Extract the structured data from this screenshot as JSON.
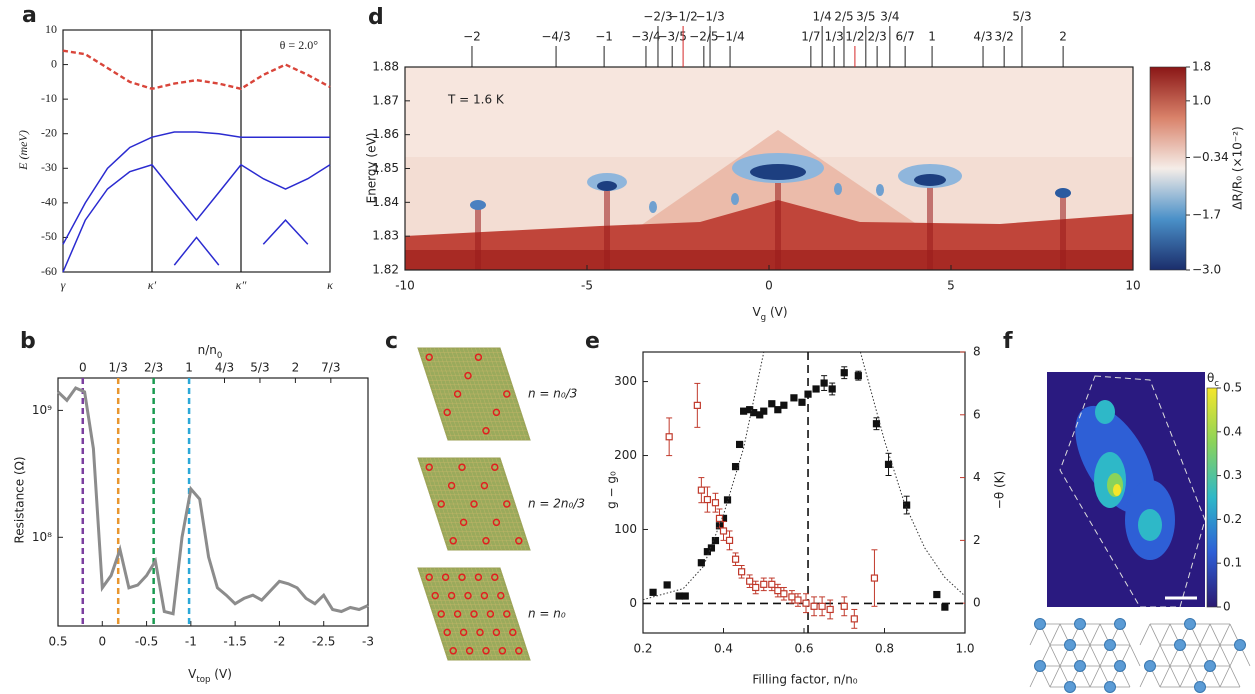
{
  "chart_data": [
    {
      "panel": "a",
      "type": "line",
      "y_label": "E (meV)",
      "annotation": "θ = 2.0°",
      "x": [
        0,
        0.25,
        0.5,
        0.75,
        1,
        1.25,
        1.5,
        1.75,
        2,
        2.25,
        2.5,
        2.75,
        3
      ],
      "series": [
        {
          "color": "#d9453a",
          "dashed": true,
          "values": [
            4,
            3,
            -1,
            -5,
            -7,
            -5.5,
            -4.5,
            -5.5,
            -7,
            -3,
            0,
            -3,
            -6.5
          ]
        },
        {
          "color": "#2b2bd0",
          "values": [
            -52,
            -40,
            -30,
            -24,
            -21,
            -19.5,
            -19.5,
            -20,
            -21,
            -21,
            -21,
            -21,
            -21
          ]
        },
        {
          "color": "#2b2bd0",
          "values": [
            -60,
            -45,
            -36,
            -31,
            -29,
            -37,
            -45,
            -37,
            -29,
            -33,
            -36,
            -33,
            -29
          ]
        },
        {
          "color": "#2b2bd0",
          "values": [
            null,
            null,
            null,
            null,
            null,
            -58,
            -50,
            -58,
            null,
            -52,
            -45,
            -52,
            null
          ]
        }
      ],
      "xlim": [
        0,
        3
      ],
      "xticks": [
        {
          "value": 0,
          "label": "γ"
        },
        {
          "value": 1,
          "label": "κ′"
        },
        {
          "value": 2,
          "label": "κ″"
        },
        {
          "value": 3,
          "label": "κ"
        }
      ],
      "xgrid": true,
      "ylim": [
        -60,
        10
      ],
      "yticks": [
        -60,
        -50,
        -40,
        -30,
        -20,
        -10,
        0,
        10
      ]
    },
    {
      "panel": "b",
      "type": "line",
      "y_label": "Resistance (Ω)",
      "x_label": {
        "text": "V",
        "sub": "top",
        "unit": " (V)"
      },
      "x2_label": {
        "text": "n/n",
        "sub": "0"
      },
      "x": [
        0.5,
        0.4,
        0.3,
        0.2,
        0.1,
        0,
        -0.1,
        -0.2,
        -0.3,
        -0.4,
        -0.5,
        -0.6,
        -0.7,
        -0.8,
        -0.9,
        -1.0,
        -1.1,
        -1.2,
        -1.3,
        -1.4,
        -1.5,
        -1.6,
        -1.7,
        -1.8,
        -1.9,
        -2.0,
        -2.1,
        -2.2,
        -2.3,
        -2.4,
        -2.5,
        -2.6,
        -2.7,
        -2.8,
        -2.9,
        -3.0
      ],
      "series": [
        {
          "color": "#8c8c8c",
          "values": [
            1400000000.0,
            1200000000.0,
            1500000000.0,
            1400000000.0,
            500000000.0,
            40000000.0,
            50000000.0,
            80000000.0,
            40000000.0,
            42000000.0,
            50000000.0,
            65000000.0,
            26000000.0,
            25000000.0,
            100000000.0,
            240000000.0,
            200000000.0,
            70000000.0,
            40000000.0,
            35000000.0,
            30000000.0,
            33000000.0,
            35000000.0,
            32000000.0,
            38000000.0,
            45000000.0,
            43000000.0,
            40000000.0,
            33000000.0,
            30000000.0,
            35000000.0,
            27000000.0,
            26000000.0,
            28000000.0,
            27000000.0,
            29000000.0
          ]
        }
      ],
      "xlim": [
        0.5,
        -3
      ],
      "xticks": [
        0.5,
        0,
        -0.5,
        -1,
        -1.5,
        -2,
        -2.5,
        -3
      ],
      "ylim": [
        20000000.0,
        1800000000.0
      ],
      "ylog": true,
      "yticks": [
        {
          "value": 100000000,
          "label": "10⁸"
        },
        {
          "value": 1000000000,
          "label": "10⁹"
        }
      ],
      "x2lim": [
        -0.233,
        2.683
      ],
      "x2ticks": [
        0,
        {
          "value": 0.3333,
          "label": "1/3"
        },
        {
          "value": 0.6667,
          "label": "2/3"
        },
        1,
        {
          "value": 1.3333,
          "label": "4/3"
        },
        {
          "value": 1.6667,
          "label": "5/3"
        },
        2,
        {
          "value": 2.3333,
          "label": "7/3"
        }
      ],
      "vlines": [
        {
          "value": 0,
          "color": "#7b3fa0"
        },
        {
          "value": 0.3333,
          "color": "#e8962e"
        },
        {
          "value": 0.6667,
          "color": "#1a9a50"
        },
        {
          "value": 1,
          "color": "#2ba8d8"
        }
      ]
    },
    {
      "panel": "d",
      "type": "heatmap",
      "y_label": "Energy (eV)",
      "x_label": {
        "text": "V",
        "sub": "g",
        "unit": " (V)"
      },
      "annotation": "T = 1.6 K",
      "xlim": [
        -10,
        10
      ],
      "xticks": [
        -10,
        -5,
        0,
        5,
        10
      ],
      "ylim": [
        1.82,
        1.88
      ],
      "yticks": [
        1.82,
        1.83,
        1.84,
        1.85,
        1.86,
        1.87,
        1.88
      ],
      "x2ticks": [
        {
          "value": -8.16,
          "label": "−2"
        },
        {
          "value": -5.85,
          "label": "−4/3"
        },
        {
          "value": -4.53,
          "label": "−1"
        },
        {
          "value": -3.38,
          "label": "−3/4"
        },
        {
          "value": -3.05,
          "label": "−2/3"
        },
        {
          "value": -2.66,
          "label": "−3/5"
        },
        {
          "value": -2.36,
          "label": "−1/2",
          "color": "#d62728"
        },
        {
          "value": -1.79,
          "label": "−2/5"
        },
        {
          "value": -1.62,
          "label": "−1/3"
        },
        {
          "value": -1.07,
          "label": "−1/4"
        },
        {
          "value": 1.15,
          "label": "1/7"
        },
        {
          "value": 1.46,
          "label": "1/4"
        },
        {
          "value": 1.79,
          "label": "1/3"
        },
        {
          "value": 2.06,
          "label": "2/5"
        },
        {
          "value": 2.36,
          "label": "1/2",
          "color": "#d62728"
        },
        {
          "value": 2.66,
          "label": "3/5"
        },
        {
          "value": 2.97,
          "label": "2/3"
        },
        {
          "value": 3.32,
          "label": "3/4"
        },
        {
          "value": 3.74,
          "label": "6/7"
        },
        {
          "value": 4.48,
          "label": "1"
        },
        {
          "value": 5.88,
          "label": "4/3"
        },
        {
          "value": 6.46,
          "label": "3/2"
        },
        {
          "value": 6.95,
          "label": "5/3"
        },
        {
          "value": 8.08,
          "label": "2"
        }
      ],
      "clim": [
        -3,
        1.8
      ],
      "colorbar_ticks": [
        1.8,
        {
          "value": 1,
          "label": "1.0"
        },
        {
          "value": -0.34,
          "label": "−0.34"
        },
        {
          "value": -1.7,
          "label": "−1.7"
        },
        {
          "value": -3,
          "label": "−3.0"
        }
      ],
      "colorbar_label": "ΔR/R₀ (×10⁻²)",
      "colormap": [
        "#1b2d6b",
        "#4a90c8",
        "#f5ede8",
        "#d9826a",
        "#8a1616"
      ]
    },
    {
      "panel": "e",
      "type": "scatter",
      "x_label": "Filling factor, n/n₀",
      "y_label": "g − g₀",
      "y2_label": "−θ (K)",
      "y2_color": "#c0392b",
      "xlim": [
        0.2,
        1
      ],
      "xticks": [
        0.2,
        0.4,
        0.6,
        0.8,
        {
          "value": 1,
          "label": "1.0"
        }
      ],
      "ylim": [
        -40,
        340
      ],
      "yticks": [
        0,
        100,
        200,
        300
      ],
      "y2lim": [
        -0.95,
        8
      ],
      "y2ticks": [
        0,
        2,
        4,
        6,
        8
      ],
      "hline": 0,
      "vline": 0.61,
      "series": [
        {
          "color": "#111111",
          "marker": "filled",
          "x": [
            0.225,
            0.26,
            0.29,
            0.305,
            0.345,
            0.36,
            0.37,
            0.38,
            0.39,
            0.4,
            0.41,
            0.43,
            0.44,
            0.45,
            0.465,
            0.475,
            0.49,
            0.5,
            0.52,
            0.535,
            0.55,
            0.575,
            0.595,
            0.61,
            0.63,
            0.65,
            0.67,
            0.7,
            0.735,
            0.78,
            0.81,
            0.855,
            0.93,
            0.95
          ],
          "values": [
            15,
            25,
            10,
            10,
            55,
            70,
            75,
            85,
            105,
            115,
            140,
            185,
            215,
            260,
            262,
            258,
            255,
            260,
            270,
            262,
            268,
            278,
            272,
            283,
            290,
            298,
            290,
            312,
            308,
            243,
            188,
            133,
            12,
            -5
          ],
          "errors": [
            null,
            null,
            null,
            null,
            null,
            null,
            null,
            null,
            null,
            null,
            null,
            null,
            null,
            null,
            null,
            null,
            null,
            null,
            null,
            null,
            null,
            null,
            null,
            null,
            null,
            10,
            8,
            8,
            6,
            8,
            15,
            12,
            null,
            null
          ]
        },
        {
          "color": "#c0392b",
          "marker": "open",
          "axis": "y2",
          "x": [
            0.265,
            0.335,
            0.345,
            0.36,
            0.38,
            0.39,
            0.4,
            0.415,
            0.43,
            0.445,
            0.465,
            0.48,
            0.5,
            0.52,
            0.535,
            0.55,
            0.57,
            0.585,
            0.605,
            0.625,
            0.645,
            0.665,
            0.7,
            0.725,
            0.775
          ],
          "values": [
            5.3,
            6.3,
            3.6,
            3.3,
            3.2,
            2.7,
            2.3,
            2.0,
            1.4,
            1.0,
            0.7,
            0.5,
            0.6,
            0.6,
            0.4,
            0.3,
            0.2,
            0.1,
            0.0,
            -0.1,
            -0.1,
            -0.2,
            -0.1,
            -0.5,
            0.8
          ],
          "errors": [
            0.6,
            0.7,
            0.4,
            0.4,
            0.3,
            0.3,
            0.3,
            0.3,
            0.2,
            0.2,
            0.2,
            0.2,
            0.2,
            0.2,
            0.2,
            0.2,
            0.2,
            0.2,
            0.3,
            0.3,
            0.3,
            0.3,
            0.3,
            0.3,
            0.9
          ]
        },
        {
          "color": "#333333",
          "marker": "dotted-line",
          "x": [
            0.2,
            0.3,
            0.35,
            0.4,
            0.45,
            0.5
          ],
          "values": [
            5,
            20,
            50,
            120,
            210,
            340
          ]
        },
        {
          "color": "#333333",
          "marker": "dotted-line",
          "x": [
            0.74,
            0.8,
            0.85,
            0.9,
            0.95,
            1.0
          ],
          "values": [
            340,
            220,
            135,
            75,
            35,
            10
          ]
        }
      ]
    },
    {
      "panel": "f",
      "type": "heatmap",
      "colorbar_label": {
        "text": "θ",
        "sub": "c"
      },
      "clim": [
        0,
        0.5
      ],
      "colorbar_ticks": [
        0,
        0.1,
        0.2,
        0.3,
        0.4,
        0.5
      ],
      "colormap": [
        "#2b1a72",
        "#2e5fd6",
        "#2eb8c8",
        "#8ad35a",
        "#f5e62a"
      ]
    }
  ],
  "diagram": {
    "panel": "c",
    "labels": [
      "n = n₀/3",
      "n = 2n₀/3",
      "n = n₀"
    ]
  }
}
